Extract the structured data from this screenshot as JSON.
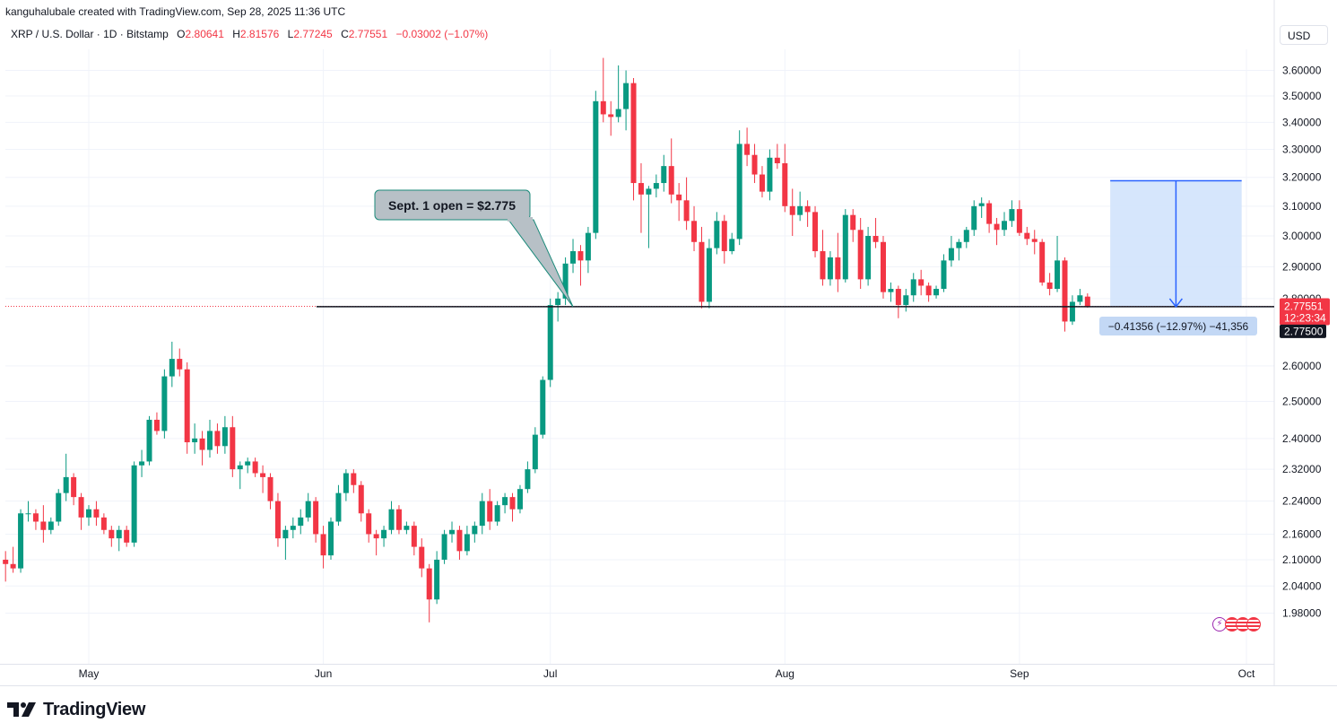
{
  "header": {
    "credit": "kanguhalubale created with TradingView.com, Sep 28, 2025 11:36 UTC",
    "symbol": "XRP / U.S. Dollar · 1D · Bitstamp",
    "o_label": "O",
    "o_value": "2.80641",
    "h_label": "H",
    "h_value": "2.81576",
    "l_label": "L",
    "l_value": "2.77245",
    "c_label": "C",
    "c_value": "2.77551",
    "change": "−0.03002 (−1.07%)",
    "currency": "USD"
  },
  "brand": {
    "name": "TradingView"
  },
  "colors": {
    "up": "#089981",
    "down": "#f23645",
    "measure_fill": "#cfe2fb",
    "measure_line": "#2962ff"
  },
  "chart_data": {
    "type": "candlestick",
    "title": "XRP / U.S. Dollar · 1D · Bitstamp",
    "y_scale": "log",
    "y_ticks": [
      "3.60000",
      "3.50000",
      "3.40000",
      "3.30000",
      "3.20000",
      "3.10000",
      "3.00000",
      "2.90000",
      "2.80000",
      "2.60000",
      "2.50000",
      "2.40000",
      "2.32000",
      "2.24000",
      "2.16000",
      "2.10000",
      "2.04000",
      "1.98000"
    ],
    "x_ticks": [
      "May",
      "Jun",
      "Jul",
      "Aug",
      "Sep",
      "Oct"
    ],
    "x_ticks_dates": [
      "2025-05-01",
      "2025-06-01",
      "2025-07-01",
      "2025-08-01",
      "2025-09-01",
      "2025-10-01"
    ],
    "first_date": "2025-04-20",
    "candles": [
      [
        2.1,
        2.12,
        2.05,
        2.09
      ],
      [
        2.09,
        2.13,
        2.07,
        2.08
      ],
      [
        2.08,
        2.22,
        2.07,
        2.21
      ],
      [
        2.21,
        2.24,
        2.19,
        2.21
      ],
      [
        2.21,
        2.22,
        2.17,
        2.19
      ],
      [
        2.19,
        2.23,
        2.14,
        2.17
      ],
      [
        2.17,
        2.2,
        2.16,
        2.19
      ],
      [
        2.19,
        2.27,
        2.18,
        2.26
      ],
      [
        2.26,
        2.36,
        2.24,
        2.3
      ],
      [
        2.3,
        2.31,
        2.23,
        2.25
      ],
      [
        2.25,
        2.26,
        2.17,
        2.2
      ],
      [
        2.2,
        2.23,
        2.18,
        2.22
      ],
      [
        2.22,
        2.24,
        2.18,
        2.2
      ],
      [
        2.2,
        2.21,
        2.16,
        2.17
      ],
      [
        2.17,
        2.18,
        2.13,
        2.15
      ],
      [
        2.15,
        2.18,
        2.12,
        2.17
      ],
      [
        2.17,
        2.18,
        2.13,
        2.14
      ],
      [
        2.14,
        2.34,
        2.13,
        2.33
      ],
      [
        2.33,
        2.37,
        2.3,
        2.34
      ],
      [
        2.34,
        2.46,
        2.33,
        2.45
      ],
      [
        2.45,
        2.47,
        2.41,
        2.42
      ],
      [
        2.42,
        2.59,
        2.4,
        2.57
      ],
      [
        2.57,
        2.67,
        2.54,
        2.62
      ],
      [
        2.62,
        2.65,
        2.57,
        2.59
      ],
      [
        2.59,
        2.61,
        2.36,
        2.39
      ],
      [
        2.39,
        2.44,
        2.36,
        2.4
      ],
      [
        2.4,
        2.42,
        2.33,
        2.37
      ],
      [
        2.37,
        2.45,
        2.35,
        2.42
      ],
      [
        2.42,
        2.44,
        2.36,
        2.38
      ],
      [
        2.38,
        2.46,
        2.36,
        2.43
      ],
      [
        2.43,
        2.46,
        2.3,
        2.32
      ],
      [
        2.32,
        2.34,
        2.27,
        2.33
      ],
      [
        2.33,
        2.35,
        2.31,
        2.34
      ],
      [
        2.34,
        2.35,
        2.3,
        2.31
      ],
      [
        2.31,
        2.33,
        2.26,
        2.3
      ],
      [
        2.3,
        2.31,
        2.22,
        2.24
      ],
      [
        2.24,
        2.26,
        2.13,
        2.15
      ],
      [
        2.15,
        2.18,
        2.1,
        2.17
      ],
      [
        2.17,
        2.2,
        2.15,
        2.18
      ],
      [
        2.18,
        2.22,
        2.16,
        2.2
      ],
      [
        2.2,
        2.26,
        2.19,
        2.24
      ],
      [
        2.24,
        2.25,
        2.14,
        2.16
      ],
      [
        2.16,
        2.18,
        2.08,
        2.11
      ],
      [
        2.11,
        2.2,
        2.1,
        2.19
      ],
      [
        2.19,
        2.28,
        2.18,
        2.26
      ],
      [
        2.26,
        2.32,
        2.24,
        2.31
      ],
      [
        2.31,
        2.32,
        2.26,
        2.28
      ],
      [
        2.28,
        2.29,
        2.19,
        2.21
      ],
      [
        2.21,
        2.22,
        2.14,
        2.16
      ],
      [
        2.16,
        2.17,
        2.11,
        2.15
      ],
      [
        2.15,
        2.18,
        2.13,
        2.17
      ],
      [
        2.17,
        2.24,
        2.16,
        2.22
      ],
      [
        2.22,
        2.23,
        2.16,
        2.17
      ],
      [
        2.17,
        2.19,
        2.16,
        2.18
      ],
      [
        2.18,
        2.19,
        2.11,
        2.13
      ],
      [
        2.13,
        2.15,
        2.06,
        2.08
      ],
      [
        2.08,
        2.09,
        1.96,
        2.01
      ],
      [
        2.01,
        2.12,
        2.0,
        2.1
      ],
      [
        2.1,
        2.17,
        2.09,
        2.16
      ],
      [
        2.16,
        2.19,
        2.14,
        2.17
      ],
      [
        2.17,
        2.18,
        2.1,
        2.12
      ],
      [
        2.12,
        2.18,
        2.11,
        2.16
      ],
      [
        2.16,
        2.19,
        2.14,
        2.18
      ],
      [
        2.18,
        2.26,
        2.16,
        2.24
      ],
      [
        2.24,
        2.27,
        2.17,
        2.19
      ],
      [
        2.19,
        2.24,
        2.18,
        2.23
      ],
      [
        2.23,
        2.26,
        2.21,
        2.25
      ],
      [
        2.25,
        2.26,
        2.19,
        2.22
      ],
      [
        2.22,
        2.28,
        2.21,
        2.27
      ],
      [
        2.27,
        2.34,
        2.26,
        2.32
      ],
      [
        2.32,
        2.43,
        2.31,
        2.41
      ],
      [
        2.41,
        2.57,
        2.4,
        2.56
      ],
      [
        2.56,
        2.8,
        2.54,
        2.78
      ],
      [
        2.78,
        2.82,
        2.73,
        2.8
      ],
      [
        2.8,
        2.93,
        2.78,
        2.91
      ],
      [
        2.91,
        2.99,
        2.88,
        2.95
      ],
      [
        2.95,
        2.97,
        2.84,
        2.92
      ],
      [
        2.92,
        3.03,
        2.88,
        3.01
      ],
      [
        3.01,
        3.52,
        2.99,
        3.48
      ],
      [
        3.48,
        3.65,
        3.4,
        3.43
      ],
      [
        3.43,
        3.48,
        3.35,
        3.42
      ],
      [
        3.42,
        3.62,
        3.4,
        3.45
      ],
      [
        3.45,
        3.6,
        3.37,
        3.55
      ],
      [
        3.55,
        3.57,
        3.12,
        3.18
      ],
      [
        3.18,
        3.25,
        3.01,
        3.14
      ],
      [
        3.14,
        3.17,
        2.96,
        3.16
      ],
      [
        3.16,
        3.21,
        3.13,
        3.18
      ],
      [
        3.18,
        3.28,
        3.15,
        3.24
      ],
      [
        3.24,
        3.34,
        3.11,
        3.14
      ],
      [
        3.14,
        3.18,
        3.05,
        3.12
      ],
      [
        3.12,
        3.2,
        3.02,
        3.05
      ],
      [
        3.05,
        3.1,
        2.95,
        2.98
      ],
      [
        2.98,
        3.03,
        2.77,
        2.79
      ],
      [
        2.79,
        2.99,
        2.77,
        2.96
      ],
      [
        2.96,
        3.08,
        2.94,
        3.05
      ],
      [
        3.05,
        3.07,
        2.91,
        2.95
      ],
      [
        2.95,
        3.01,
        2.94,
        2.99
      ],
      [
        2.99,
        3.37,
        2.97,
        3.32
      ],
      [
        3.32,
        3.38,
        3.24,
        3.28
      ],
      [
        3.28,
        3.32,
        3.18,
        3.21
      ],
      [
        3.21,
        3.24,
        3.13,
        3.15
      ],
      [
        3.15,
        3.3,
        3.12,
        3.27
      ],
      [
        3.27,
        3.32,
        3.23,
        3.25
      ],
      [
        3.25,
        3.32,
        3.08,
        3.1
      ],
      [
        3.1,
        3.16,
        3.0,
        3.07
      ],
      [
        3.07,
        3.15,
        3.05,
        3.1
      ],
      [
        3.1,
        3.12,
        3.03,
        3.08
      ],
      [
        3.08,
        3.1,
        2.93,
        2.95
      ],
      [
        2.95,
        3.02,
        2.84,
        2.86
      ],
      [
        2.86,
        2.95,
        2.84,
        2.93
      ],
      [
        2.93,
        3.01,
        2.82,
        2.86
      ],
      [
        2.86,
        3.09,
        2.85,
        3.07
      ],
      [
        3.07,
        3.09,
        2.98,
        3.02
      ],
      [
        3.02,
        3.06,
        2.83,
        2.86
      ],
      [
        2.86,
        3.03,
        2.84,
        3.0
      ],
      [
        3.0,
        3.06,
        2.96,
        2.98
      ],
      [
        2.98,
        3.0,
        2.8,
        2.82
      ],
      [
        2.82,
        2.85,
        2.79,
        2.83
      ],
      [
        2.83,
        2.84,
        2.74,
        2.78
      ],
      [
        2.78,
        2.83,
        2.76,
        2.81
      ],
      [
        2.81,
        2.88,
        2.79,
        2.86
      ],
      [
        2.86,
        2.89,
        2.81,
        2.84
      ],
      [
        2.84,
        2.85,
        2.79,
        2.81
      ],
      [
        2.81,
        2.84,
        2.8,
        2.83
      ],
      [
        2.83,
        2.94,
        2.82,
        2.92
      ],
      [
        2.92,
        3.0,
        2.9,
        2.96
      ],
      [
        2.96,
        2.99,
        2.92,
        2.98
      ],
      [
        2.98,
        3.03,
        2.96,
        3.02
      ],
      [
        3.02,
        3.12,
        3.0,
        3.1
      ],
      [
        3.1,
        3.13,
        3.06,
        3.11
      ],
      [
        3.11,
        3.12,
        3.01,
        3.04
      ],
      [
        3.04,
        3.06,
        2.97,
        3.02
      ],
      [
        3.02,
        3.08,
        3.0,
        3.05
      ],
      [
        3.05,
        3.12,
        3.03,
        3.09
      ],
      [
        3.09,
        3.12,
        3.0,
        3.01
      ],
      [
        3.01,
        3.03,
        2.97,
        2.99
      ],
      [
        2.99,
        3.02,
        2.94,
        2.98
      ],
      [
        2.98,
        2.99,
        2.84,
        2.85
      ],
      [
        2.85,
        2.88,
        2.81,
        2.83
      ],
      [
        2.83,
        3.0,
        2.82,
        2.92
      ],
      [
        2.92,
        2.93,
        2.7,
        2.73
      ],
      [
        2.73,
        2.81,
        2.72,
        2.79
      ],
      [
        2.79,
        2.83,
        2.78,
        2.81
      ],
      [
        2.806,
        2.816,
        2.772,
        2.776
      ]
    ],
    "last_price": "2.77551",
    "countdown": "12:23:34",
    "annotation": {
      "text": "Sept. 1 open = $2.775",
      "level": 2.775,
      "level_label": "2.77500"
    },
    "measure": {
      "label": "−0.41356 (−12.97%) −41,356",
      "from_date": "2025-09-13",
      "to_date": "2025-09-28",
      "high": 3.188,
      "low": 2.775
    }
  }
}
